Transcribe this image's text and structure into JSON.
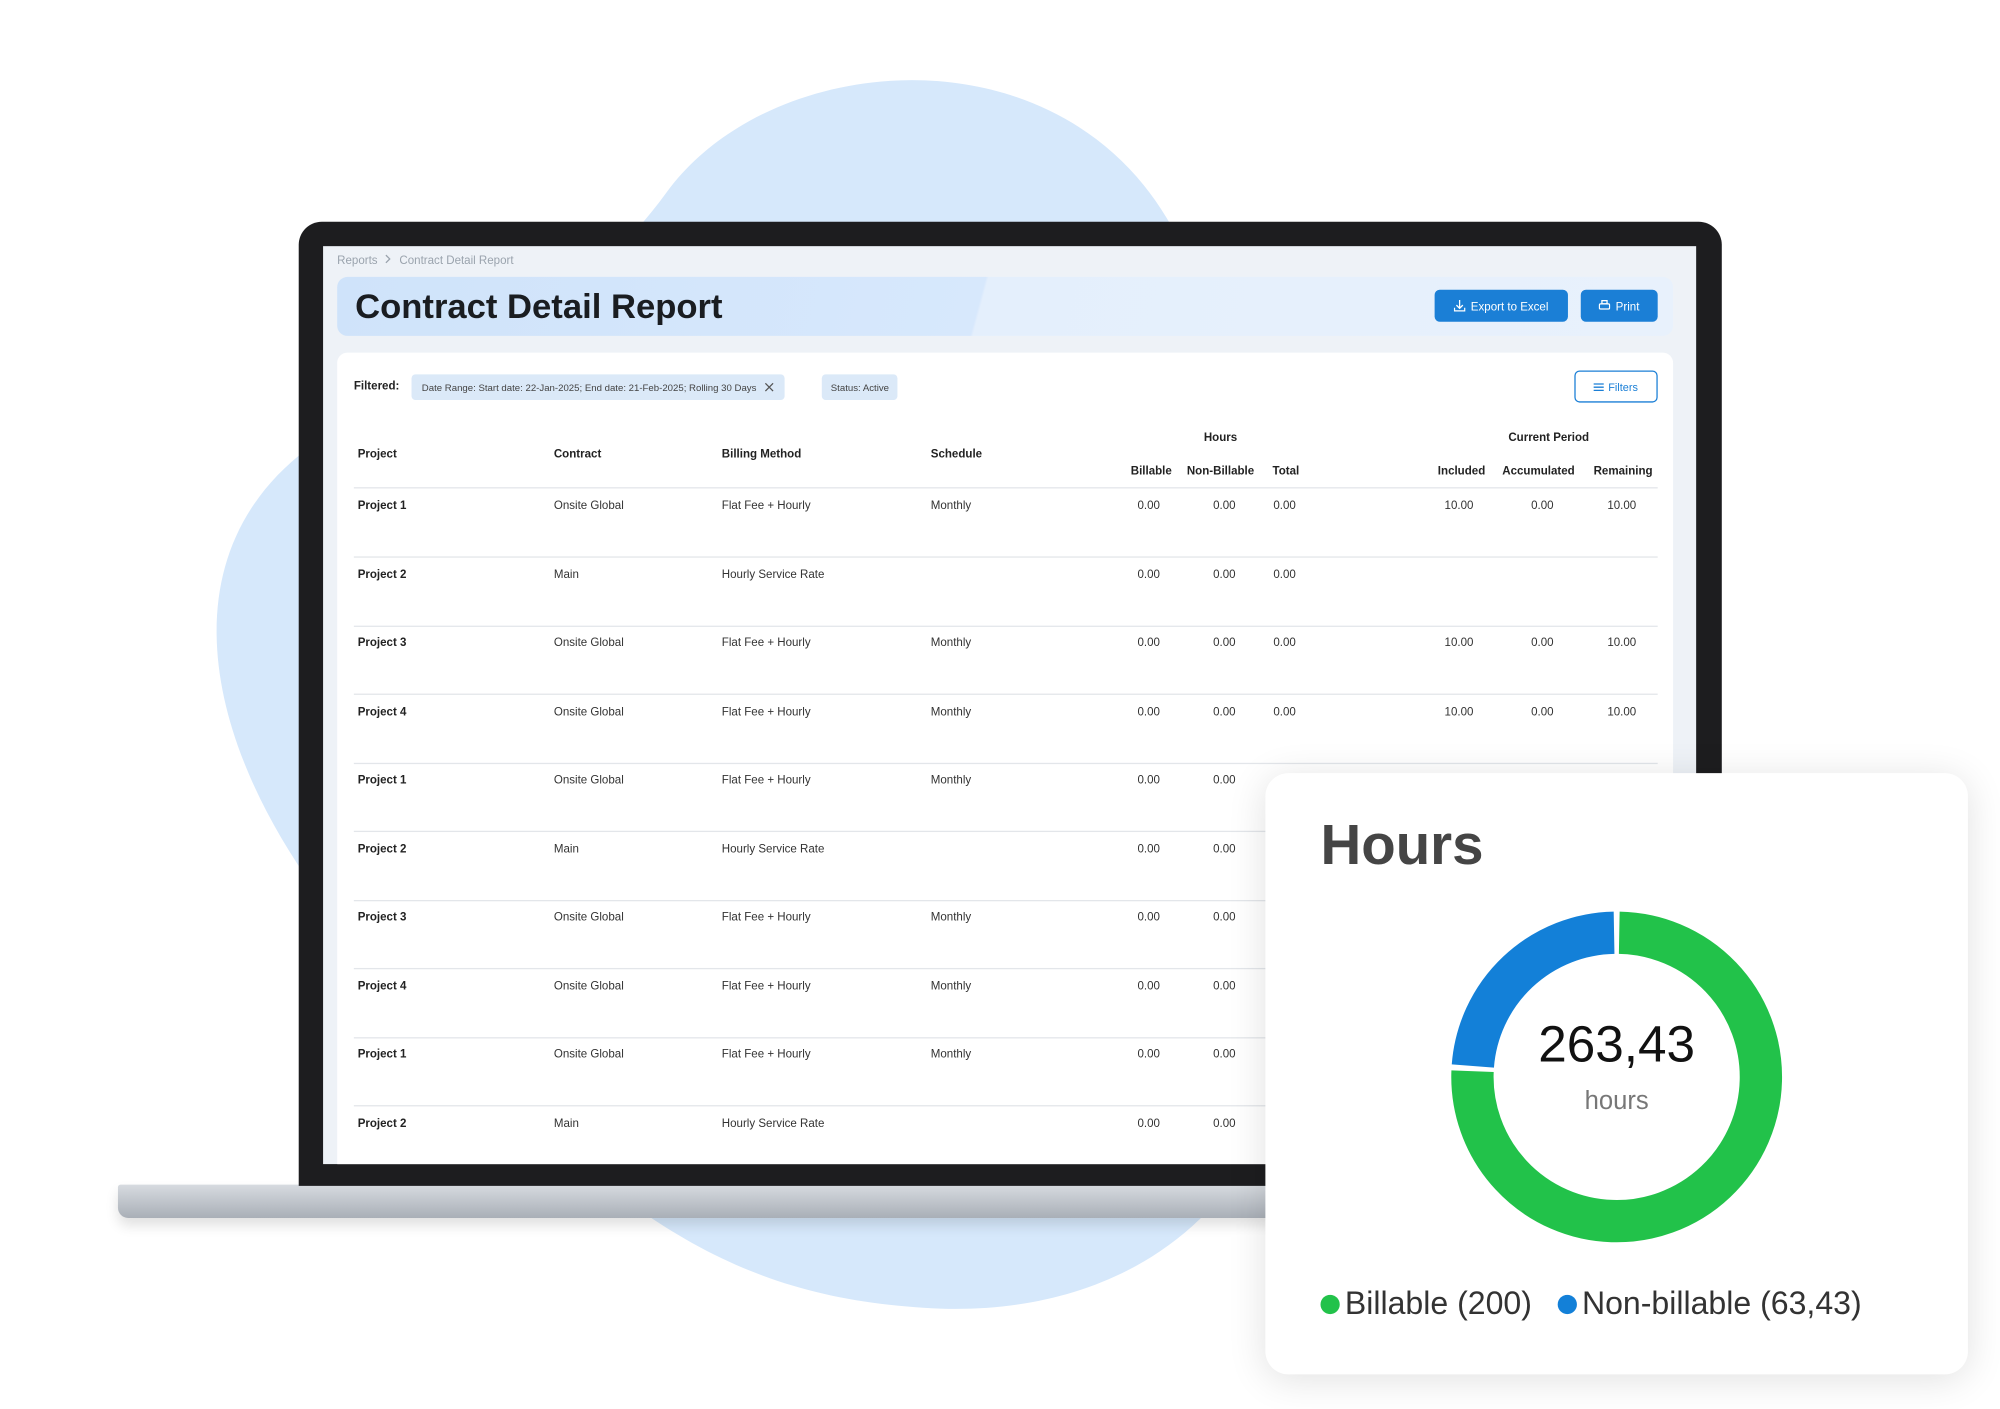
{
  "breadcrumb": [
    "Reports",
    "Contract Detail Report"
  ],
  "header": {
    "title": "Contract Detail Report",
    "buttons": [
      "Export to Excel",
      "Print"
    ]
  },
  "filters": {
    "label": "Filtered:",
    "chips": [
      "Date Range: Start date: 22-Jan-2025; End date: 21-Feb-2025; Rolling 30 Days",
      "Status: Active"
    ],
    "button": "Filters"
  },
  "table": {
    "groups": [
      "Hours",
      "Current Period"
    ],
    "columns": [
      "Project",
      "Contract",
      "Billing Method",
      "Schedule",
      "Billable",
      "Non-Billable",
      "Total",
      "Included",
      "Accumulated",
      "Remaining"
    ],
    "rows": [
      [
        "Project 1",
        "Onsite Global",
        "Flat Fee + Hourly",
        "Monthly",
        "0.00",
        "0.00",
        "0.00",
        "10.00",
        "0.00",
        "10.00"
      ],
      [
        "Project 2",
        "Main",
        "Hourly Service Rate",
        null,
        "0.00",
        "0.00",
        "0.00",
        null,
        null,
        null
      ],
      [
        "Project 3",
        "Onsite Global",
        "Flat Fee + Hourly",
        "Monthly",
        "0.00",
        "0.00",
        "0.00",
        "10.00",
        "0.00",
        "10.00"
      ],
      [
        "Project 4",
        "Onsite Global",
        "Flat Fee + Hourly",
        "Monthly",
        "0.00",
        "0.00",
        "0.00",
        "10.00",
        "0.00",
        "10.00"
      ],
      [
        "Project 1",
        "Onsite Global",
        "Flat Fee + Hourly",
        "Monthly",
        "0.00",
        "0.00",
        null,
        null,
        null,
        null
      ],
      [
        "Project 2",
        "Main",
        "Hourly Service Rate",
        null,
        "0.00",
        "0.00",
        null,
        null,
        null,
        null
      ],
      [
        "Project 3",
        "Onsite Global",
        "Flat Fee + Hourly",
        "Monthly",
        "0.00",
        "0.00",
        null,
        null,
        null,
        null
      ],
      [
        "Project 4",
        "Onsite Global",
        "Flat Fee + Hourly",
        "Monthly",
        "0.00",
        "0.00",
        null,
        null,
        null,
        null
      ],
      [
        "Project 1",
        "Onsite Global",
        "Flat Fee + Hourly",
        "Monthly",
        "0.00",
        "0.00",
        null,
        null,
        null,
        null
      ],
      [
        "Project 2",
        "Main",
        "Hourly Service Rate",
        null,
        "0.00",
        "0.00",
        null,
        null,
        null,
        null
      ]
    ]
  },
  "hours_card": {
    "title": "Hours",
    "total_label": "263,43",
    "unit": "hours",
    "segments": [
      {
        "name": "Billable (200)",
        "value": 200,
        "color": "#22c24a"
      },
      {
        "name": "Non-billable (63,43)",
        "value": 63.43,
        "color": "#1380d8"
      }
    ]
  }
}
